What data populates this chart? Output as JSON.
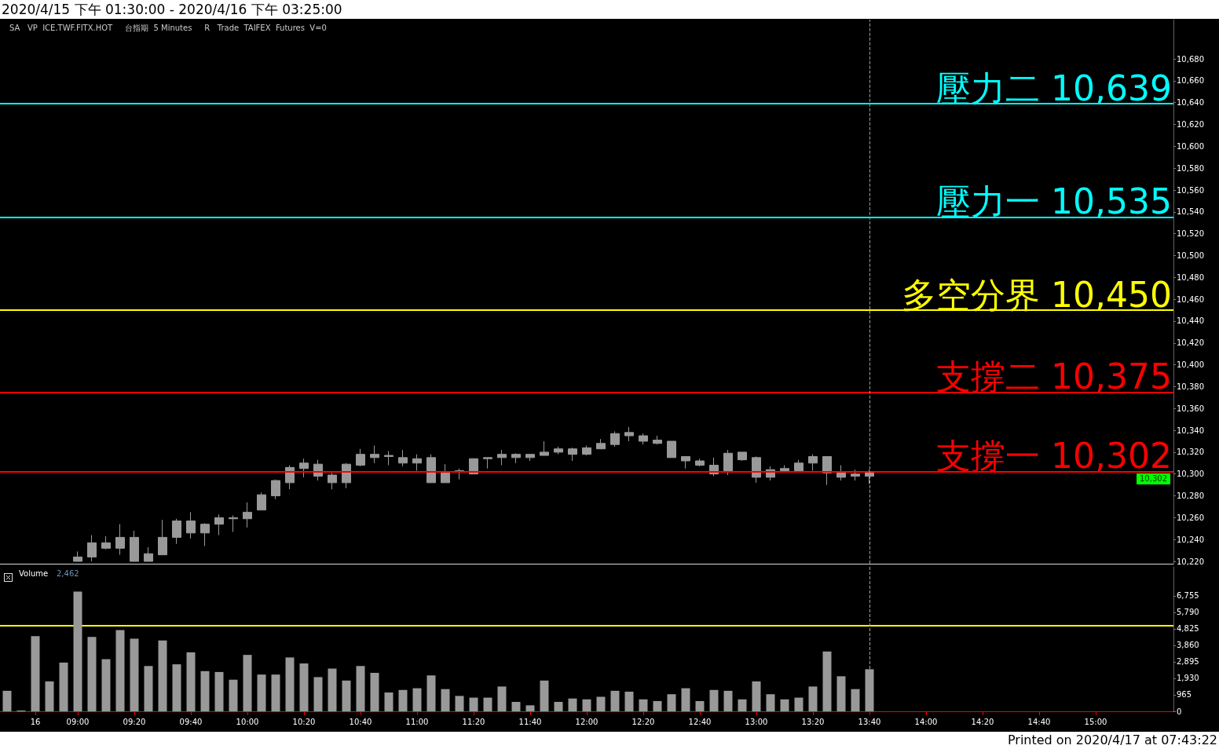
{
  "chart_data": [
    {
      "type": "candlestick",
      "title": "2020/4/15 下午 01:30:00 - 2020/4/16 下午 03:25:00",
      "subtitle": "SA   VP  ICE.TWF.FITX.HOT     台指期  5 Minutes     R   Trade  TAIFEX  Futures  V=0",
      "color": "#999999",
      "categories": [
        null,
        null,
        "16",
        null,
        null,
        "09:00",
        null,
        null,
        null,
        "09:20",
        null,
        null,
        null,
        "09:40",
        null,
        null,
        null,
        "10:00",
        null,
        null,
        null,
        "10:20",
        null,
        null,
        null,
        "10:40",
        null,
        null,
        null,
        "11:00",
        null,
        null,
        null,
        "11:20",
        null,
        null,
        null,
        "11:40",
        null,
        null,
        null,
        "12:00",
        null,
        null,
        null,
        "12:20",
        null,
        null,
        null,
        "12:40",
        null,
        null,
        null,
        "13:00",
        null,
        null,
        null,
        "13:20",
        null,
        null,
        null,
        "13:40",
        null,
        null,
        null,
        "14:00",
        null,
        null,
        null,
        "14:20",
        null,
        null,
        null,
        "14:40",
        null,
        null,
        null,
        "15:00",
        null,
        null,
        null,
        null,
        null
      ],
      "ohlc": [
        null,
        null,
        null,
        null,
        null,
        [
          10220,
          10229,
          10220,
          10224
        ],
        [
          10224,
          10244,
          10220,
          10237
        ],
        [
          10232,
          10243,
          10231,
          10237
        ],
        [
          10232,
          10254,
          10226,
          10242
        ],
        [
          10220,
          10248,
          10220,
          10242
        ],
        [
          10220,
          10233,
          10220,
          10227
        ],
        [
          10226,
          10258,
          10226,
          10242
        ],
        [
          10242,
          10259,
          10236,
          10257
        ],
        [
          10246,
          10265,
          10241,
          10257
        ],
        [
          10246,
          10255,
          10234,
          10254
        ],
        [
          10254,
          10263,
          10244,
          10260
        ],
        [
          10259,
          10262,
          10247,
          10260
        ],
        [
          10259,
          10274,
          10251,
          10265
        ],
        [
          10267,
          10283,
          10267,
          10281
        ],
        [
          10280,
          10295,
          10277,
          10294
        ],
        [
          10292,
          10308,
          10286,
          10306
        ],
        [
          10305,
          10314,
          10297,
          10310
        ],
        [
          10298,
          10313,
          10294,
          10309
        ],
        [
          10292,
          10301,
          10286,
          10299
        ],
        [
          10292,
          10310,
          10287,
          10309
        ],
        [
          10308,
          10323,
          10307,
          10318
        ],
        [
          10315,
          10326,
          10310,
          10318
        ],
        [
          10316,
          10321,
          10308,
          10317
        ],
        [
          10310,
          10322,
          10307,
          10315
        ],
        [
          10310,
          10318,
          10303,
          10314
        ],
        [
          10292,
          10318,
          10292,
          10315
        ],
        [
          10292,
          10309,
          10292,
          10301
        ],
        [
          10302,
          10305,
          10295,
          10303
        ],
        [
          10300,
          10314,
          10300,
          10314
        ],
        [
          10314,
          10315,
          10305,
          10315
        ],
        [
          10315,
          10322,
          10308,
          10318
        ],
        [
          10315,
          10319,
          10310,
          10318
        ],
        [
          10315,
          10318,
          10312,
          10318
        ],
        [
          10317,
          10330,
          10317,
          10320
        ],
        [
          10320,
          10325,
          10318,
          10323
        ],
        [
          10318,
          10324,
          10312,
          10323
        ],
        [
          10318,
          10326,
          10317,
          10324
        ],
        [
          10323,
          10332,
          10323,
          10328
        ],
        [
          10327,
          10339,
          10325,
          10337
        ],
        [
          10335,
          10343,
          10330,
          10338
        ],
        [
          10330,
          10337,
          10327,
          10335
        ],
        [
          10328,
          10335,
          10327,
          10331
        ],
        [
          10315,
          10330,
          10315,
          10330
        ],
        [
          10312,
          10316,
          10305,
          10316
        ],
        [
          10308,
          10314,
          10307,
          10312
        ],
        [
          10300,
          10315,
          10298,
          10308
        ],
        [
          10303,
          10322,
          10299,
          10319
        ],
        [
          10313,
          10320,
          10312,
          10320
        ],
        [
          10297,
          10316,
          10292,
          10315
        ],
        [
          10297,
          10307,
          10294,
          10304
        ],
        [
          10303,
          10308,
          10303,
          10305
        ],
        [
          10303,
          10313,
          10303,
          10310
        ],
        [
          10310,
          10318,
          10303,
          10316
        ],
        [
          10301,
          10316,
          10290,
          10316
        ],
        [
          10297,
          10308,
          10294,
          10301
        ],
        [
          10298,
          10304,
          10294,
          10300
        ],
        [
          10298,
          10304,
          10291,
          10302
        ],
        null,
        null,
        null,
        null,
        null,
        null,
        null,
        null,
        null,
        null,
        null,
        null,
        null,
        null,
        null,
        null,
        null,
        null,
        null,
        null,
        null
      ],
      "ylim": [
        10218,
        10716
      ],
      "yticks": [
        {
          "value": 10220,
          "label": "10,220"
        },
        {
          "value": 10240,
          "label": "10,240"
        },
        {
          "value": 10260,
          "label": "10,260"
        },
        {
          "value": 10280,
          "label": "10,280"
        },
        {
          "value": 10300,
          "label": "10,300"
        },
        {
          "value": 10320,
          "label": "10,320"
        },
        {
          "value": 10340,
          "label": "10,340"
        },
        {
          "value": 10360,
          "label": "10,360"
        },
        {
          "value": 10380,
          "label": "10,380"
        },
        {
          "value": 10400,
          "label": "10,400"
        },
        {
          "value": 10420,
          "label": "10,420"
        },
        {
          "value": 10440,
          "label": "10,440"
        },
        {
          "value": 10460,
          "label": "10,460"
        },
        {
          "value": 10480,
          "label": "10,480"
        },
        {
          "value": 10500,
          "label": "10,500"
        },
        {
          "value": 10520,
          "label": "10,520"
        },
        {
          "value": 10540,
          "label": "10,540"
        },
        {
          "value": 10560,
          "label": "10,560"
        },
        {
          "value": 10580,
          "label": "10,580"
        },
        {
          "value": 10600,
          "label": "10,600"
        },
        {
          "value": 10620,
          "label": "10,620"
        },
        {
          "value": 10640,
          "label": "10,640"
        },
        {
          "value": 10660,
          "label": "10,660"
        },
        {
          "value": 10680,
          "label": "10,680"
        }
      ],
      "ref_lines": [
        {
          "axis": "y",
          "value": 10639,
          "label": "壓力二 10,639",
          "color": "#00ffff"
        },
        {
          "axis": "y",
          "value": 10535,
          "label": "壓力一 10,535",
          "color": "#00ffff"
        },
        {
          "axis": "y",
          "value": 10450,
          "label": "多空分界 10,450",
          "color": "#ffff00"
        },
        {
          "axis": "y",
          "value": 10375,
          "label": "支撐二 10,375",
          "color": "#ff0000"
        },
        {
          "axis": "y",
          "value": 10302,
          "label": "支撐一 10,302",
          "color": "#ff0000"
        },
        {
          "axis": "x",
          "value": "13:40",
          "color": "#a0a0a0",
          "line_style": "dashed"
        }
      ],
      "annotations": [
        {
          "text": "10,302",
          "y": 10302
        }
      ],
      "tick_labels": "y"
    },
    {
      "type": "bar",
      "title": "Volume",
      "color": "#999999",
      "categories": [
        null,
        null,
        "16",
        null,
        null,
        "09:00",
        null,
        null,
        null,
        "09:20",
        null,
        null,
        null,
        "09:40",
        null,
        null,
        null,
        "10:00",
        null,
        null,
        null,
        "10:20",
        null,
        null,
        null,
        "10:40",
        null,
        null,
        null,
        "11:00",
        null,
        null,
        null,
        "11:20",
        null,
        null,
        null,
        "11:40",
        null,
        null,
        null,
        "12:00",
        null,
        null,
        null,
        "12:20",
        null,
        null,
        null,
        "12:40",
        null,
        null,
        null,
        "13:00",
        null,
        null,
        null,
        "13:20",
        null,
        null,
        null,
        "13:40",
        null,
        null,
        null,
        "14:00",
        null,
        null,
        null,
        "14:20",
        null,
        null,
        null,
        "14:40",
        null,
        null,
        null,
        "15:00",
        null,
        null,
        null,
        null,
        null
      ],
      "values": [
        1200,
        50,
        4400,
        1750,
        2850,
        7000,
        4350,
        3050,
        4750,
        4250,
        2650,
        4150,
        2750,
        3450,
        2350,
        2300,
        1850,
        3300,
        2150,
        2150,
        3150,
        2800,
        2000,
        2500,
        1800,
        2650,
        2250,
        1100,
        1250,
        1350,
        2100,
        1300,
        900,
        800,
        800,
        1450,
        550,
        350,
        1800,
        550,
        750,
        700,
        850,
        1200,
        1150,
        700,
        600,
        1000,
        1350,
        600,
        1250,
        1200,
        700,
        1750,
        1000,
        700,
        800,
        1450,
        3500,
        2050,
        1300,
        2462,
        null,
        null,
        null,
        null,
        null,
        null,
        null,
        null,
        null,
        null,
        null,
        null,
        null,
        null,
        null,
        null,
        null,
        null,
        null,
        null,
        null
      ],
      "ylim": [
        0,
        8450
      ],
      "yticks": [
        0,
        {
          "value": 965,
          "label": "965"
        },
        {
          "value": 1930,
          "label": "1,930"
        },
        {
          "value": 2895,
          "label": "2,895"
        },
        {
          "value": 3860,
          "label": "3,860"
        },
        {
          "value": 4825,
          "label": "4,825"
        },
        {
          "value": 5790,
          "label": "5,790"
        },
        {
          "value": 6755,
          "label": "6,755"
        }
      ],
      "ref_lines": [
        {
          "axis": "y",
          "value": 5000,
          "color": "#ffff00"
        },
        {
          "axis": "x",
          "value": "13:40",
          "color": "#a0a0a0",
          "line_style": "dashed"
        }
      ],
      "annotations": [
        "2,462",
        "Printed on 2020/4/17 at 07:43:22"
      ]
    }
  ]
}
